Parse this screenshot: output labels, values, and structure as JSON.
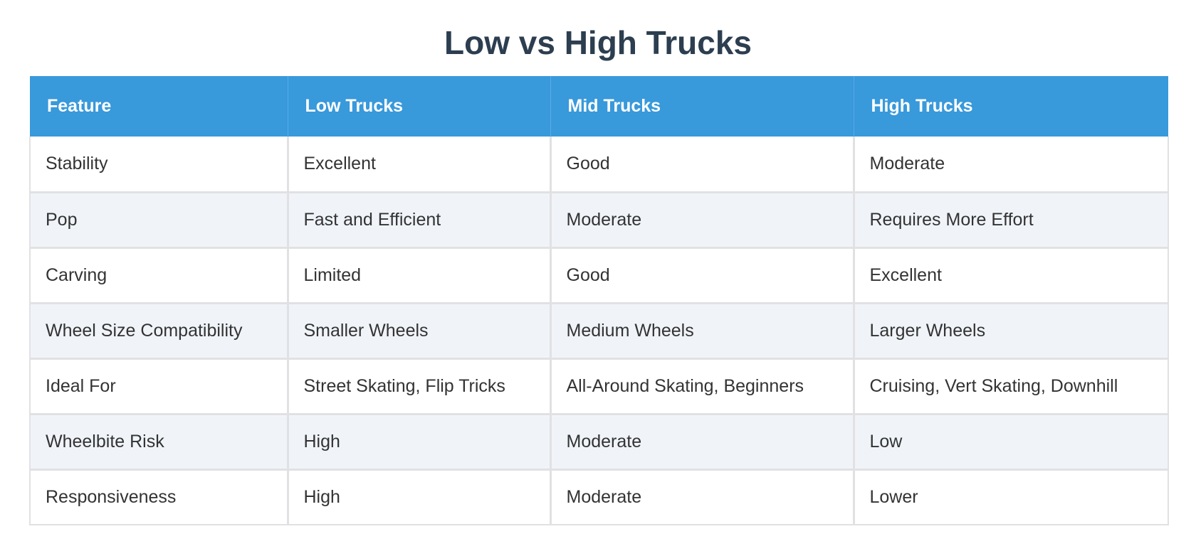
{
  "title": "Low vs High Trucks",
  "table": {
    "headers": [
      "Feature",
      "Low Trucks",
      "Mid Trucks",
      "High Trucks"
    ],
    "rows": [
      [
        "Stability",
        "Excellent",
        "Good",
        "Moderate"
      ],
      [
        "Pop",
        "Fast and Efficient",
        "Moderate",
        "Requires More Effort"
      ],
      [
        "Carving",
        "Limited",
        "Good",
        "Excellent"
      ],
      [
        "Wheel Size Compatibility",
        "Smaller Wheels",
        "Medium Wheels",
        "Larger Wheels"
      ],
      [
        "Ideal For",
        "Street Skating, Flip Tricks",
        "All-Around Skating, Beginners",
        "Cruising, Vert Skating, Downhill"
      ],
      [
        "Wheelbite Risk",
        "High",
        "Moderate",
        "Low"
      ],
      [
        "Responsiveness",
        "High",
        "Moderate",
        "Lower"
      ]
    ]
  },
  "colors": {
    "header_bg": "#3899db",
    "header_text": "#ffffff",
    "title_text": "#2c3e50",
    "row_alt_bg": "#f0f4f9",
    "border": "#e1e1e3"
  }
}
